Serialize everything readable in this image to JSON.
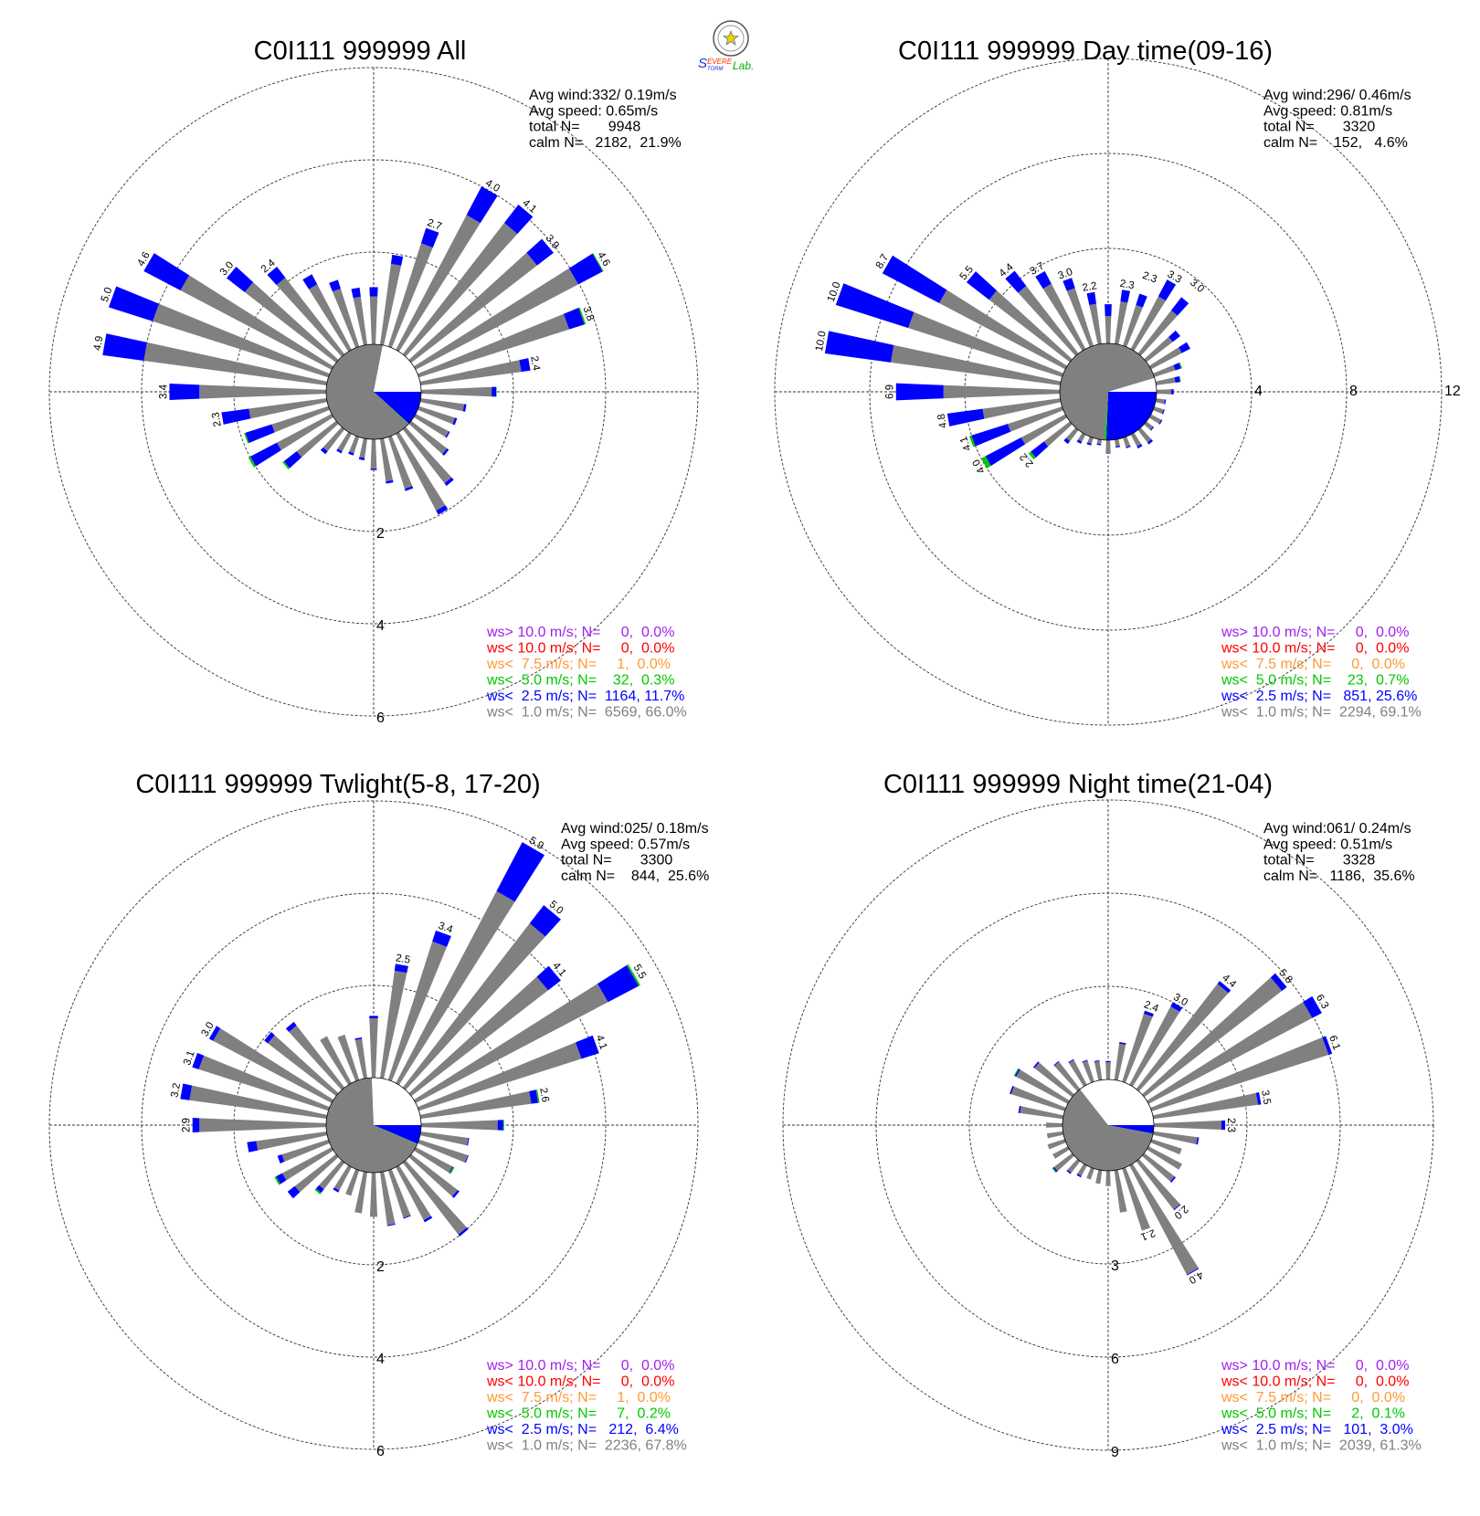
{
  "logo": {
    "text": "SEVERE STORM Lab."
  },
  "colors": {
    "gt10": "#a020f0",
    "lt10": "#ff0000",
    "lt7_5": "#ff9933",
    "lt5": "#00c800",
    "lt2_5": "#0000ff",
    "lt1": "#808080",
    "calm": "#ffffff"
  },
  "panels": [
    {
      "title": "C0I111 999999 All",
      "info": [
        "Avg wind:332/ 0.19m/s",
        "Avg speed: 0.65m/s",
        "total N=       9948",
        "calm N=   2182,  21.9%"
      ],
      "legend": [
        "ws> 10.0 m/s; N=     0,  0.0%",
        "ws< 10.0 m/s; N=     0,  0.0%",
        "ws<  7.5 m/s; N=     1,  0.0%",
        "ws<  5.0 m/s; N=    32,  0.3%",
        "ws<  2.5 m/s; N=  1164, 11.7%",
        "ws<  1.0 m/s; N=  6569, 66.0%"
      ],
      "ring_labels": [
        "2",
        "4",
        "6"
      ]
    },
    {
      "title": "C0I111 999999 Day time(09-16)",
      "info": [
        "Avg wind:296/ 0.46m/s",
        "Avg speed: 0.81m/s",
        "total N=       3320",
        "calm N=    152,   4.6%"
      ],
      "legend": [
        "ws> 10.0 m/s; N=     0,  0.0%",
        "ws< 10.0 m/s; N=     0,  0.0%",
        "ws<  7.5 m/s; N=     0,  0.0%",
        "ws<  5.0 m/s; N=    23,  0.7%",
        "ws<  2.5 m/s; N=   851, 25.6%",
        "ws<  1.0 m/s; N=  2294, 69.1%"
      ],
      "ring_labels": [
        "4",
        "8",
        "12"
      ]
    },
    {
      "title": "C0I111 999999 Twlight(5-8, 17-20)",
      "info": [
        "Avg wind:025/ 0.18m/s",
        "Avg speed: 0.57m/s",
        "total N=       3300",
        "calm N=    844,  25.6%"
      ],
      "legend": [
        "ws> 10.0 m/s; N=     0,  0.0%",
        "ws< 10.0 m/s; N=     0,  0.0%",
        "ws<  7.5 m/s; N=     1,  0.0%",
        "ws<  5.0 m/s; N=     7,  0.2%",
        "ws<  2.5 m/s; N=   212,  6.4%",
        "ws<  1.0 m/s; N=  2236, 67.8%"
      ],
      "ring_labels": [
        "2",
        "4",
        "6"
      ]
    },
    {
      "title": "C0I111 999999 Night time(21-04)",
      "info": [
        "Avg wind:061/ 0.24m/s",
        "Avg speed: 0.51m/s",
        "total N=       3328",
        "calm N=   1186,  35.6%"
      ],
      "legend": [
        "ws> 10.0 m/s; N=     0,  0.0%",
        "ws< 10.0 m/s; N=     0,  0.0%",
        "ws<  7.5 m/s; N=     0,  0.0%",
        "ws<  5.0 m/s; N=     2,  0.1%",
        "ws<  2.5 m/s; N=   101,  3.0%",
        "ws<  1.0 m/s; N=  2039, 61.3%"
      ],
      "ring_labels": [
        "3",
        "6",
        "9"
      ]
    }
  ],
  "chart_data": [
    {
      "type": "polar-bar (wind rose)",
      "title": "C0I111 999999 All",
      "directions_deg": [
        10,
        20,
        30,
        40,
        50,
        60,
        70,
        80,
        90,
        100,
        110,
        120,
        130,
        140,
        150,
        160,
        170,
        180,
        190,
        200,
        210,
        220,
        230,
        240,
        250,
        260,
        270,
        280,
        290,
        300,
        310,
        320,
        330,
        340,
        350,
        360
      ],
      "total_pct": [
        1.97,
        2.7,
        4.0,
        4.1,
        3.9,
        4.6,
        3.8,
        2.4,
        1.64,
        1.0,
        0.87,
        0.84,
        1.03,
        1.55,
        1.98,
        1.23,
        0.98,
        0.67,
        0.47,
        0.42,
        0.48,
        0.68,
        1.47,
        2.04,
        1.92,
        2.3,
        3.4,
        4.9,
        5.0,
        4.6,
        3.0,
        2.4,
        1.85,
        1.52,
        1.25,
        1.24
      ],
      "ws_lt2_5_pct": [
        0.2,
        0.35,
        0.7,
        0.5,
        0.45,
        0.6,
        0.35,
        0.2,
        0.1,
        0.05,
        0.05,
        0.03,
        0.05,
        0.07,
        0.1,
        0.05,
        0.05,
        0.03,
        0.05,
        0.05,
        0.05,
        0.08,
        0.35,
        0.65,
        0.6,
        0.6,
        0.65,
        0.9,
        1.0,
        0.9,
        0.5,
        0.3,
        0.25,
        0.2,
        0.2,
        0.2
      ],
      "ws_lt5_pct": [
        0,
        0,
        0,
        0,
        0,
        0.02,
        0.03,
        0,
        0.01,
        0,
        0,
        0,
        0,
        0,
        0,
        0,
        0,
        0,
        0,
        0,
        0,
        0,
        0.04,
        0.05,
        0.03,
        0,
        0,
        0,
        0,
        0,
        0,
        0,
        0,
        0,
        0,
        0
      ],
      "class_pct": {
        "lt1": 66.0,
        "lt2_5": 11.7,
        "lt5": 0.3,
        "lt7_5": 0.0,
        "lt10": 0.0,
        "gt10": 0.0,
        "calm": 21.9
      },
      "rings": [
        2,
        4,
        6
      ],
      "grid": true
    },
    {
      "type": "polar-bar (wind rose)",
      "title": "C0I111 999999 Day time(09-16)",
      "directions_deg": [
        10,
        20,
        30,
        40,
        50,
        60,
        70,
        80,
        90,
        100,
        110,
        120,
        130,
        140,
        150,
        160,
        170,
        180,
        190,
        200,
        210,
        220,
        230,
        240,
        250,
        260,
        270,
        280,
        290,
        300,
        310,
        320,
        330,
        340,
        350,
        360
      ],
      "total_pct": [
        2.3,
        2.3,
        3.3,
        3.0,
        1.8,
        1.87,
        1.23,
        1.05,
        0.72,
        0.42,
        0.46,
        0.54,
        0.4,
        0.76,
        0.66,
        0.46,
        0.34,
        0.56,
        0.24,
        0.34,
        0.44,
        0.74,
        2.2,
        4.0,
        4.1,
        4.8,
        6.9,
        10.0,
        10.0,
        8.7,
        5.5,
        4.4,
        3.7,
        3.0,
        2.2,
        1.65
      ],
      "ws_lt2_5_pct": [
        0.5,
        0.5,
        0.8,
        0.7,
        0.4,
        0.4,
        0.25,
        0.2,
        0.1,
        0.05,
        0.05,
        0.05,
        0.05,
        0.1,
        0.1,
        0.05,
        0.05,
        0.02,
        0.05,
        0.08,
        0.1,
        0.15,
        0.7,
        1.7,
        1.6,
        1.5,
        2.0,
        2.8,
        3.2,
        2.7,
        1.2,
        0.8,
        0.6,
        0.45,
        0.5,
        0.5
      ],
      "ws_lt5_pct": [
        0,
        0,
        0,
        0,
        0,
        0,
        0.05,
        0.03,
        0,
        0,
        0,
        0,
        0,
        0,
        0,
        0,
        0,
        0,
        0,
        0,
        0,
        0,
        0.12,
        0.2,
        0.1,
        0,
        0,
        0,
        0,
        0,
        0,
        0,
        0,
        0,
        0,
        0
      ],
      "class_pct": {
        "lt1": 69.1,
        "lt2_5": 25.6,
        "lt5": 0.7,
        "lt7_5": 0.0,
        "lt10": 0.0,
        "gt10": 0.0,
        "calm": 4.6
      },
      "rings": [
        4,
        8,
        12
      ],
      "grid": true
    },
    {
      "type": "polar-bar (wind rose)",
      "title": "C0I111 999999 Twlight(5-8, 17-20)",
      "directions_deg": [
        10,
        20,
        30,
        40,
        50,
        60,
        70,
        80,
        90,
        100,
        110,
        120,
        130,
        140,
        150,
        160,
        170,
        180,
        190,
        200,
        210,
        220,
        230,
        240,
        250,
        260,
        270,
        280,
        290,
        300,
        310,
        320,
        330,
        340,
        350,
        360
      ],
      "total_pct": [
        2.5,
        3.4,
        5.9,
        5.0,
        4.1,
        5.5,
        4.1,
        2.6,
        1.8,
        1.06,
        1.13,
        0.95,
        1.32,
        2.02,
        1.35,
        1.1,
        1.18,
        0.96,
        0.9,
        0.58,
        0.62,
        0.87,
        1.33,
        1.4,
        1.16,
        1.74,
        2.9,
        3.2,
        3.1,
        3.0,
        1.97,
        1.8,
        1.15,
        1.03,
        0.89,
        1.34
      ],
      "ws_lt2_5_pct": [
        0.15,
        0.25,
        1.2,
        0.5,
        0.35,
        0.75,
        0.4,
        0.15,
        0.12,
        0.02,
        0.02,
        0.02,
        0.05,
        0.05,
        0.05,
        0.02,
        0.02,
        0,
        0,
        0,
        0.05,
        0.1,
        0.2,
        0.15,
        0.1,
        0.2,
        0.15,
        0.2,
        0.15,
        0.1,
        0.1,
        0.1,
        0,
        0,
        0.03,
        0.05
      ],
      "ws_lt5_pct": [
        0,
        0,
        0,
        0,
        0,
        0.04,
        0,
        0.03,
        0.02,
        0,
        0,
        0.03,
        0,
        0,
        0,
        0,
        0,
        0,
        0,
        0,
        0,
        0.04,
        0,
        0.04,
        0,
        0,
        0,
        0,
        0,
        0,
        0,
        0,
        0,
        0,
        0,
        0
      ],
      "class_pct": {
        "lt1": 67.8,
        "lt2_5": 6.4,
        "lt5": 0.2,
        "lt7_5": 0.0,
        "lt10": 0.0,
        "gt10": 0.0,
        "calm": 25.6
      },
      "rings": [
        2,
        4,
        6
      ],
      "grid": true
    },
    {
      "type": "polar-bar (wind rose)",
      "title": "C0I111 999999 Night time(21-04)",
      "directions_deg": [
        10,
        20,
        30,
        40,
        50,
        60,
        70,
        80,
        90,
        100,
        110,
        120,
        130,
        140,
        150,
        160,
        170,
        180,
        190,
        200,
        210,
        220,
        230,
        240,
        250,
        260,
        270,
        280,
        290,
        300,
        310,
        320,
        330,
        340,
        350,
        360
      ],
      "total_pct": [
        1.23,
        2.4,
        3.0,
        4.4,
        5.8,
        6.3,
        6.1,
        3.5,
        2.3,
        1.48,
        1.02,
        1.22,
        1.28,
        2.0,
        4.0,
        2.1,
        1.37,
        0.49,
        0.44,
        0.37,
        0.43,
        0.52,
        0.81,
        0.55,
        0.58,
        0.52,
        0.53,
        1.45,
        1.86,
        1.96,
        1.58,
        1.14,
        0.93,
        0.74,
        0.64,
        0.59
      ],
      "ws_lt2_5_pct": [
        0.05,
        0.1,
        0.15,
        0.12,
        0.2,
        0.35,
        0.12,
        0.1,
        0.12,
        0.05,
        0,
        0,
        0.05,
        0.03,
        0.03,
        0,
        0,
        0,
        0,
        0,
        0.05,
        0.05,
        0.05,
        0,
        0,
        0,
        0,
        0.05,
        0.05,
        0.05,
        0.05,
        0.03,
        0.03,
        0.03,
        0.03,
        0.03
      ],
      "ws_lt5_pct": [
        0,
        0,
        0,
        0,
        0,
        0,
        0,
        0,
        0,
        0,
        0,
        0,
        0,
        0,
        0,
        0,
        0,
        0,
        0,
        0,
        0,
        0,
        0.03,
        0,
        0,
        0,
        0,
        0,
        0,
        0.03,
        0,
        0,
        0,
        0,
        0,
        0
      ],
      "class_pct": {
        "lt1": 61.3,
        "lt2_5": 3.0,
        "lt5": 0.1,
        "lt7_5": 0.0,
        "lt10": 0.0,
        "gt10": 0.0,
        "calm": 35.6
      },
      "rings": [
        3,
        6,
        9
      ],
      "grid": true
    }
  ]
}
